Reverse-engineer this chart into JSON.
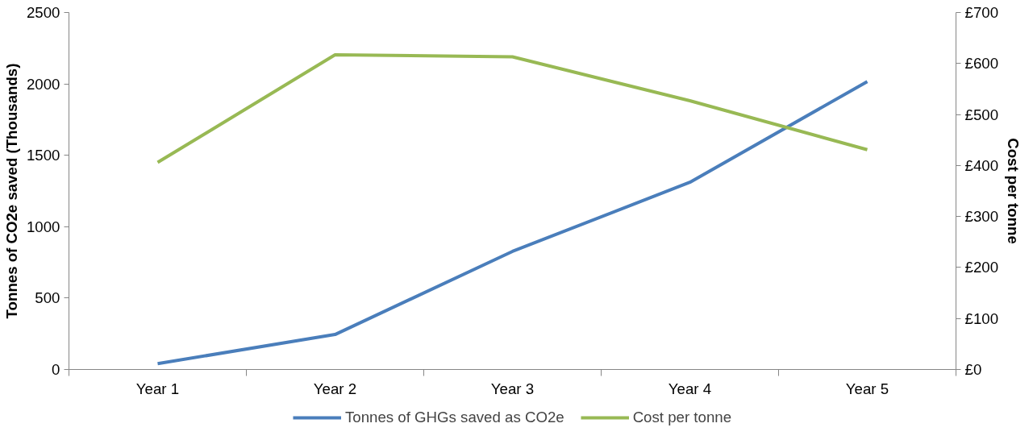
{
  "chart_data": {
    "type": "line",
    "categories": [
      "Year 1",
      "Year 2",
      "Year 3",
      "Year 4",
      "Year 5"
    ],
    "ylabel": "Tonnes of CO2e saved (Thousands)",
    "y2label": "Cost per tonne",
    "ylim": [
      0,
      2500
    ],
    "yticks": [
      0,
      500,
      1000,
      1500,
      2000,
      2500
    ],
    "y2lim": [
      0,
      700
    ],
    "y2ticks": [
      {
        "value": 0,
        "label": "£0"
      },
      {
        "value": 100,
        "label": "£100"
      },
      {
        "value": 200,
        "label": "£200"
      },
      {
        "value": 300,
        "label": "£300"
      },
      {
        "value": 400,
        "label": "£400"
      },
      {
        "value": 500,
        "label": "£500"
      },
      {
        "value": 600,
        "label": "£600"
      },
      {
        "value": 700,
        "label": "£700"
      }
    ],
    "series": [
      {
        "name": "Tonnes of GHGs saved as CO2e",
        "color": "#4a7ebb",
        "values": [
          41,
          245,
          827,
          1311,
          2016
        ]
      },
      {
        "name": "Cost per tonne",
        "color": "#98b954",
        "axis": "y2",
        "values": [
          406,
          617,
          613,
          527,
          431
        ]
      }
    ],
    "grid": false,
    "legend": "bottom",
    "marker": "none",
    "line_style": "solid"
  }
}
